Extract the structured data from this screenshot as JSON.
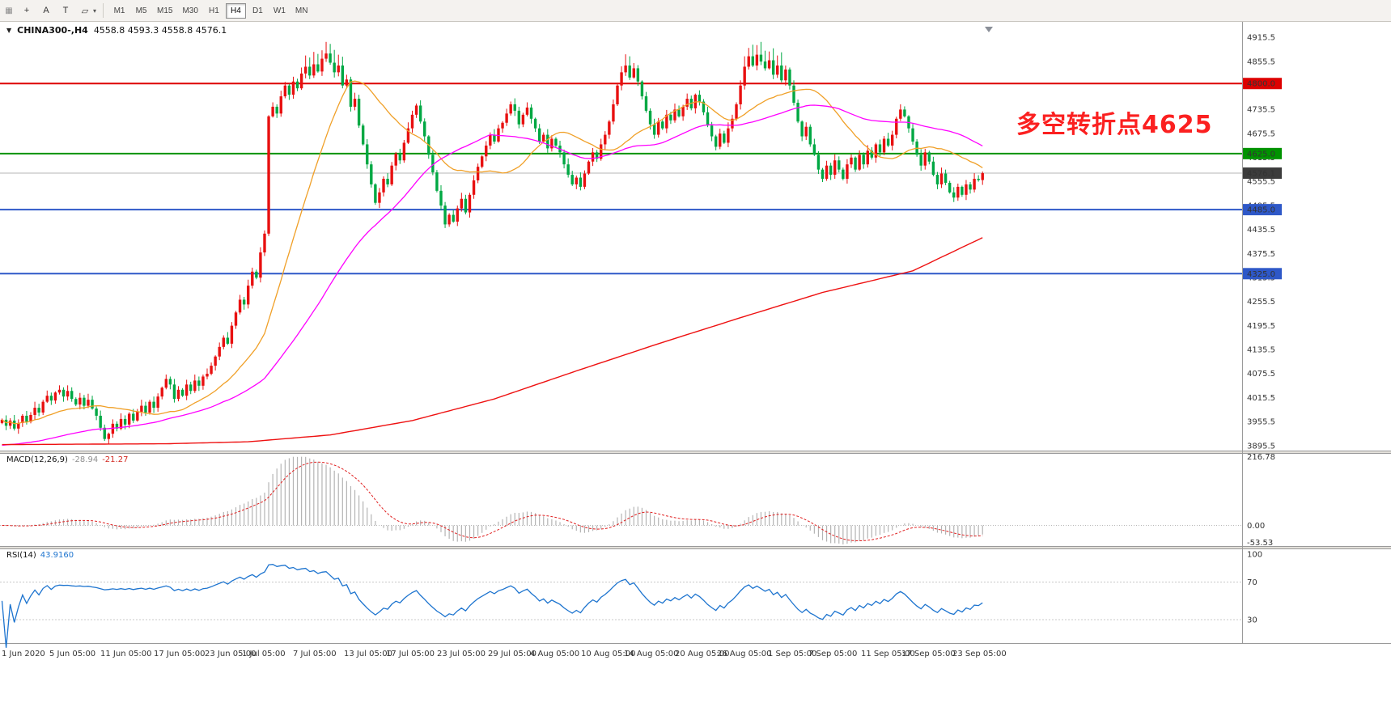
{
  "toolbar": {
    "tools": [
      {
        "name": "crosshair-tool",
        "glyph": "+"
      },
      {
        "name": "text-label-tool",
        "glyph": "A"
      },
      {
        "name": "text-box-tool",
        "glyph": "T"
      },
      {
        "name": "shapes-tool",
        "glyph": "▱",
        "caret": true
      }
    ],
    "timeframes": [
      "M1",
      "M5",
      "M15",
      "M30",
      "H1",
      "H4",
      "D1",
      "W1",
      "MN"
    ],
    "active_timeframe": "H4"
  },
  "chart": {
    "title": "CHINA300-,H4",
    "ohlc": "4558.8 4593.3 4558.8 4576.1",
    "annotation": {
      "text": "多空转折点4625",
      "color": "#fb2020"
    },
    "levels": [
      {
        "price": 4800.0,
        "label": "4800.0",
        "color": "#dd0000"
      },
      {
        "price": 4625.0,
        "label": "4625.0",
        "color": "#009300"
      },
      {
        "price": 4485.0,
        "label": "4485.0",
        "color": "#2e58c8"
      },
      {
        "price": 4325.0,
        "label": "4325.0",
        "color": "#2e58c8"
      }
    ],
    "current_price": {
      "price": 4576.1,
      "label": "4576.1",
      "color": "#3c3c3c"
    },
    "price_axis_ticks": [
      "4915.5",
      "4855.5",
      "4795.5",
      "4735.5",
      "4675.5",
      "4615.5",
      "4555.5",
      "4495.5",
      "4435.5",
      "4375.5",
      "4315.5",
      "4255.5",
      "4195.5",
      "4135.5",
      "4075.5",
      "4015.5",
      "3955.5",
      "3895.5"
    ]
  },
  "macd": {
    "label": "MACD(12,26,9)",
    "values": [
      "-28.94",
      "-21.27"
    ],
    "ticks": [
      "216.78",
      "0.00",
      "-53.53"
    ],
    "tick_values": [
      216.78,
      0,
      -53.53
    ]
  },
  "rsi": {
    "label": "RSI(14)",
    "value": "43.9160",
    "ticks": [
      "100",
      "70",
      "30"
    ],
    "tick_values": [
      100,
      70,
      30
    ]
  },
  "time_axis": [
    {
      "pos": 0.001,
      "label": "1 Jun 2020"
    },
    {
      "pos": 0.04,
      "label": "5 Jun 05:00"
    },
    {
      "pos": 0.081,
      "label": "11 Jun 05:00"
    },
    {
      "pos": 0.124,
      "label": "17 Jun 05:00"
    },
    {
      "pos": 0.165,
      "label": "23 Jun 05:00"
    },
    {
      "pos": 0.195,
      "label": "1 Jul 05:00"
    },
    {
      "pos": 0.236,
      "label": "7 Jul 05:00"
    },
    {
      "pos": 0.277,
      "label": "13 Jul 05:00"
    },
    {
      "pos": 0.311,
      "label": "17 Jul 05:00"
    },
    {
      "pos": 0.352,
      "label": "23 Jul 05:00"
    },
    {
      "pos": 0.393,
      "label": "29 Jul 05:00"
    },
    {
      "pos": 0.427,
      "label": "4 Aug 05:00"
    },
    {
      "pos": 0.468,
      "label": "10 Aug 05:00"
    },
    {
      "pos": 0.502,
      "label": "14 Aug 05:00"
    },
    {
      "pos": 0.543,
      "label": "20 Aug 05:00"
    },
    {
      "pos": 0.577,
      "label": "26 Aug 05:00"
    },
    {
      "pos": 0.618,
      "label": "1 Sep 05:00"
    },
    {
      "pos": 0.651,
      "label": "7 Sep 05:00"
    },
    {
      "pos": 0.693,
      "label": "11 Sep 05:00"
    },
    {
      "pos": 0.726,
      "label": "17 Sep 05:00"
    },
    {
      "pos": 0.767,
      "label": "23 Sep 05:00"
    }
  ],
  "chart_data": {
    "type": "candlestick",
    "symbol": "CHINA300-",
    "timeframe": "H4",
    "price_range": [
      3883,
      4946
    ],
    "last_bar": {
      "open": 4558.8,
      "high": 4593.3,
      "low": 4558.8,
      "close": 4576.1
    },
    "up_color": "#e81010",
    "down_color": "#00a843",
    "closes": [
      3960,
      3945,
      3958,
      3938,
      3952,
      3970,
      3955,
      3972,
      3990,
      3978,
      4005,
      4020,
      4008,
      4028,
      4035,
      4018,
      4032,
      4012,
      3998,
      4015,
      3995,
      4010,
      3988,
      3970,
      3940,
      3912,
      3925,
      3950,
      3938,
      3962,
      3948,
      3975,
      3958,
      3980,
      3995,
      3978,
      4005,
      3990,
      4018,
      4040,
      4062,
      4048,
      4012,
      4035,
      4020,
      4048,
      4032,
      4058,
      4045,
      4068,
      4075,
      4095,
      4118,
      4142,
      4165,
      4150,
      4195,
      4228,
      4260,
      4248,
      4295,
      4330,
      4315,
      4378,
      4425,
      4718,
      4742,
      4725,
      4768,
      4795,
      4772,
      4805,
      4788,
      4825,
      4842,
      4820,
      4848,
      4830,
      4862,
      4875,
      4852,
      4828,
      4845,
      4795,
      4810,
      4742,
      4762,
      4695,
      4648,
      4598,
      4548,
      4502,
      4528,
      4562,
      4548,
      4595,
      4625,
      4608,
      4652,
      4688,
      4722,
      4745,
      4705,
      4668,
      4622,
      4578,
      4532,
      4495,
      4448,
      4472,
      4455,
      4488,
      4512,
      4478,
      4522,
      4558,
      4592,
      4618,
      4645,
      4672,
      4655,
      4688,
      4702,
      4725,
      4748,
      4732,
      4698,
      4722,
      4740,
      4712,
      4688,
      4655,
      4672,
      4638,
      4662,
      4645,
      4628,
      4598,
      4572,
      4548,
      4565,
      4542,
      4575,
      4605,
      4628,
      4612,
      4648,
      4672,
      4705,
      4748,
      4795,
      4828,
      4845,
      4815,
      4838,
      4805,
      4768,
      4732,
      4698,
      4672,
      4705,
      4688,
      4722,
      4708,
      4735,
      4718,
      4742,
      4762,
      4738,
      4772,
      4755,
      4728,
      4695,
      4668,
      4642,
      4675,
      4652,
      4688,
      4712,
      4748,
      4795,
      4842,
      4868,
      4845,
      4872,
      4855,
      4838,
      4858,
      4822,
      4845,
      4808,
      4835,
      4795,
      4752,
      4705,
      4668,
      4692,
      4648,
      4622,
      4585,
      4562,
      4595,
      4572,
      4608,
      4585,
      4562,
      4598,
      4615,
      4585,
      4622,
      4598,
      4632,
      4615,
      4648,
      4628,
      4662,
      4645,
      4672,
      4712,
      4735,
      4718,
      4688,
      4655,
      4622,
      4595,
      4628,
      4605,
      4572,
      4548,
      4575,
      4552,
      4528,
      4515,
      4542,
      4522,
      4548,
      4535,
      4562,
      4558.8,
      4576.1
    ],
    "ma_fast": {
      "period": 21,
      "color": "#f0a028"
    },
    "ma_slow": {
      "period": 55,
      "color": "#ff00ff"
    },
    "ma_long": {
      "color": "#ee1111",
      "anchors": [
        [
          0,
          3898
        ],
        [
          40,
          3900
        ],
        [
          60,
          3905
        ],
        [
          80,
          3922
        ],
        [
          100,
          3958
        ],
        [
          120,
          4012
        ],
        [
          140,
          4082
        ],
        [
          160,
          4150
        ],
        [
          180,
          4215
        ],
        [
          200,
          4278
        ],
        [
          222,
          4332
        ],
        [
          239,
          4415
        ]
      ]
    }
  }
}
